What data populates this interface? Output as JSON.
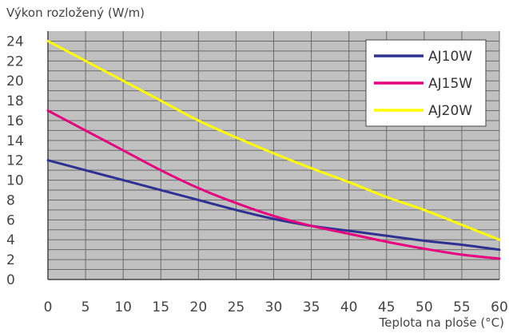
{
  "chart_data": {
    "type": "line",
    "ylabel": "Výkon rozložený (W/m)",
    "xlabel": "Teplota na ploše (°C)",
    "xlim": [
      0,
      60
    ],
    "ylim": [
      0,
      25
    ],
    "x_ticks": [
      0,
      5,
      10,
      15,
      20,
      25,
      30,
      35,
      40,
      45,
      50,
      55,
      60
    ],
    "y_ticks": [
      0,
      2,
      4,
      6,
      8,
      10,
      12,
      14,
      16,
      18,
      20,
      22,
      24
    ],
    "grid": true,
    "legend_position": "top-right",
    "plot_background": "#c0c0c0",
    "series": [
      {
        "name": "AJ10W",
        "color": "#2e3192",
        "x": [
          0,
          5,
          10,
          15,
          20,
          25,
          30,
          35,
          40,
          45,
          50,
          55,
          60
        ],
        "y": [
          12,
          11,
          10,
          9,
          8,
          7,
          6.1,
          5.4,
          4.9,
          4.4,
          3.9,
          3.5,
          3.0
        ]
      },
      {
        "name": "AJ15W",
        "color": "#e6007e",
        "x": [
          0,
          5,
          10,
          15,
          20,
          25,
          30,
          35,
          40,
          45,
          50,
          55,
          60
        ],
        "y": [
          17,
          15,
          13,
          11,
          9.2,
          7.7,
          6.4,
          5.4,
          4.6,
          3.8,
          3.1,
          2.5,
          2.1
        ]
      },
      {
        "name": "AJ20W",
        "color": "#ffff00",
        "x": [
          0,
          5,
          10,
          15,
          20,
          25,
          30,
          35,
          40,
          45,
          50,
          55,
          60
        ],
        "y": [
          24,
          22,
          20,
          18,
          16,
          14.3,
          12.7,
          11.2,
          9.8,
          8.3,
          7.0,
          5.5,
          4.0
        ]
      }
    ]
  }
}
